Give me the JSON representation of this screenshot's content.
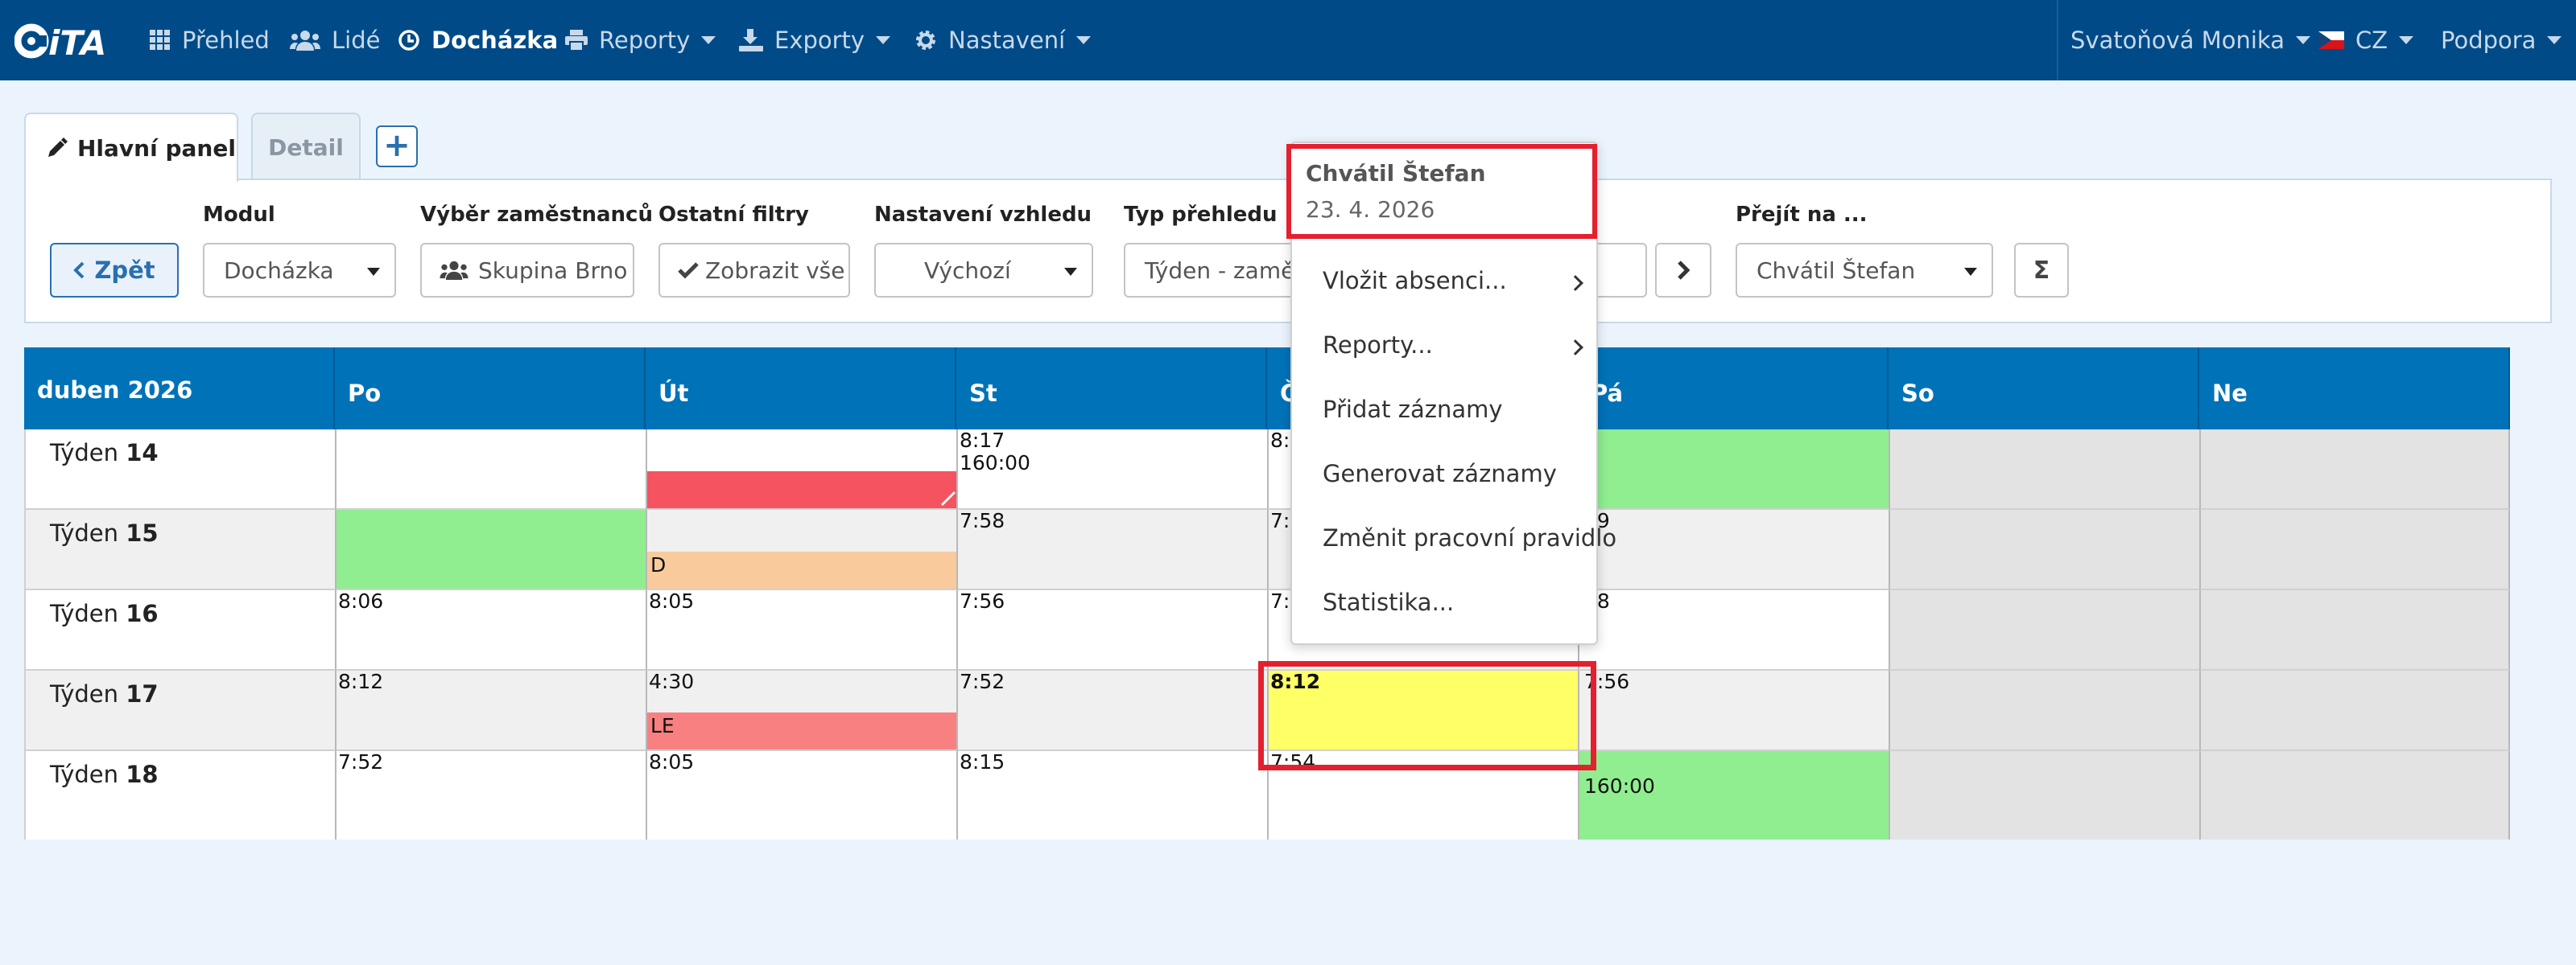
{
  "nav": {
    "logo_text": "iTA",
    "items": [
      {
        "label": "Přehled",
        "icon": "grid-icon"
      },
      {
        "label": "Lidé",
        "icon": "users-icon"
      },
      {
        "label": "Docházka",
        "icon": "clock-icon",
        "active": true
      },
      {
        "label": "Reporty",
        "icon": "print-icon",
        "dropdown": true
      },
      {
        "label": "Exporty",
        "icon": "export-icon",
        "dropdown": true
      },
      {
        "label": "Nastavení",
        "icon": "gear-icon",
        "dropdown": true
      }
    ],
    "user": "Svatoňová Monika",
    "language": "CZ",
    "support": "Podpora"
  },
  "tabs": {
    "main": "Hlavní panel",
    "detail": "Detail",
    "add": "+"
  },
  "filters": {
    "back": "Zpět",
    "module_label": "Modul",
    "module_value": "Docházka",
    "employees_label": "Výběr zaměstnanců",
    "employees_value": "Skupina Brno",
    "other_label": "Ostatní filtry",
    "other_value": "Zobrazit vše",
    "appearance_label": "Nastavení vzhledu",
    "appearance_value": "Výchozí",
    "overview_label": "Typ přehledu",
    "overview_value": "Týden - zamě",
    "goto_label": "Přejít na ...",
    "goto_value": "Chvátil Štefan",
    "sum_button": "Σ"
  },
  "calendar": {
    "month": "duben 2026",
    "days": [
      "Po",
      "Út",
      "St",
      "Čt",
      "Pá",
      "So",
      "Ne"
    ],
    "week_prefix": "Týden",
    "weeks": [
      {
        "num": "14",
        "po": "",
        "ut": "",
        "st": "8:17\n160:00",
        "ct": "8:0",
        "pa": ""
      },
      {
        "num": "15",
        "po": "",
        "ut": "D",
        "st": "7:58",
        "ct": "7:2",
        "pa": "39"
      },
      {
        "num": "16",
        "po": "8:06",
        "ut": "8:05",
        "st": "7:56",
        "ct": "7:4",
        "pa": "48"
      },
      {
        "num": "17",
        "po": "8:12",
        "ut": "4:30",
        "ut_bar": "LE",
        "st": "7:52",
        "ct": "8:12",
        "pa": "7:56"
      },
      {
        "num": "18",
        "po": "7:52",
        "ut": "8:05",
        "st": "8:15",
        "ct": "7:54",
        "pa": "160:00"
      }
    ]
  },
  "context_menu": {
    "name": "Chvátil Štefan",
    "date": "23. 4. 2026",
    "items": [
      "Vložit absenci...",
      "Reporty...",
      "Přidat záznamy",
      "Generovat záznamy",
      "Změnit pracovní pravidlo",
      "Statistika..."
    ]
  },
  "colors": {
    "navbar": "#004a87",
    "header": "#0072b8",
    "green": "#90ee90",
    "red_bar": "#f5535f",
    "orange_bar": "#f9cb9c",
    "le_bar": "#f88080",
    "yellow": "#ffff66",
    "weekend": "#e3e3e3",
    "highlight": "#e4202f"
  }
}
